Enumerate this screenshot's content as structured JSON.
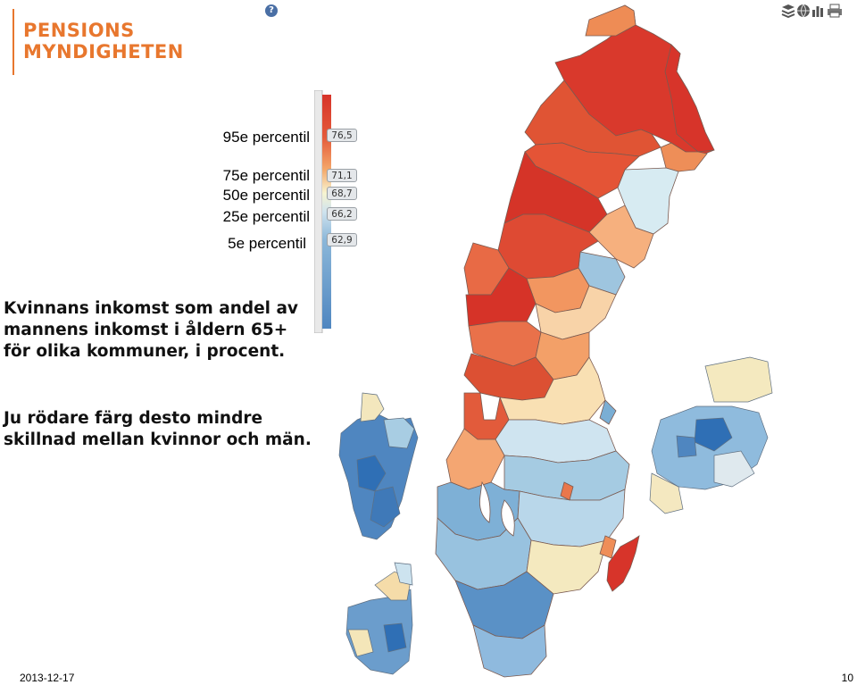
{
  "logo": {
    "line1": "PENSIONS",
    "line2": "MYNDIGHETEN"
  },
  "help_icon": "question-icon",
  "toolbar": [
    "layers-icon",
    "globe-icon",
    "chart-icon",
    "print-icon"
  ],
  "legend": {
    "labels": [
      "95e percentil",
      "75e percentil",
      "50e percentil",
      "25e percentil",
      "5e percentil"
    ],
    "values": [
      "76,5",
      "71,1",
      "68,7",
      "66,2",
      "62,9"
    ],
    "colors": {
      "high": "#d7342a",
      "mid": "#f7f4d0",
      "low": "#4f86c0"
    }
  },
  "description": {
    "text1": "Kvinnans inkomst som andel av mannens inkomst i åldern 65+ för olika kommuner, i procent.",
    "text2": "Ju rödare färg desto mindre skillnad mellan kvinnor och män."
  },
  "footer": {
    "date": "2013-12-17",
    "page": "10"
  }
}
